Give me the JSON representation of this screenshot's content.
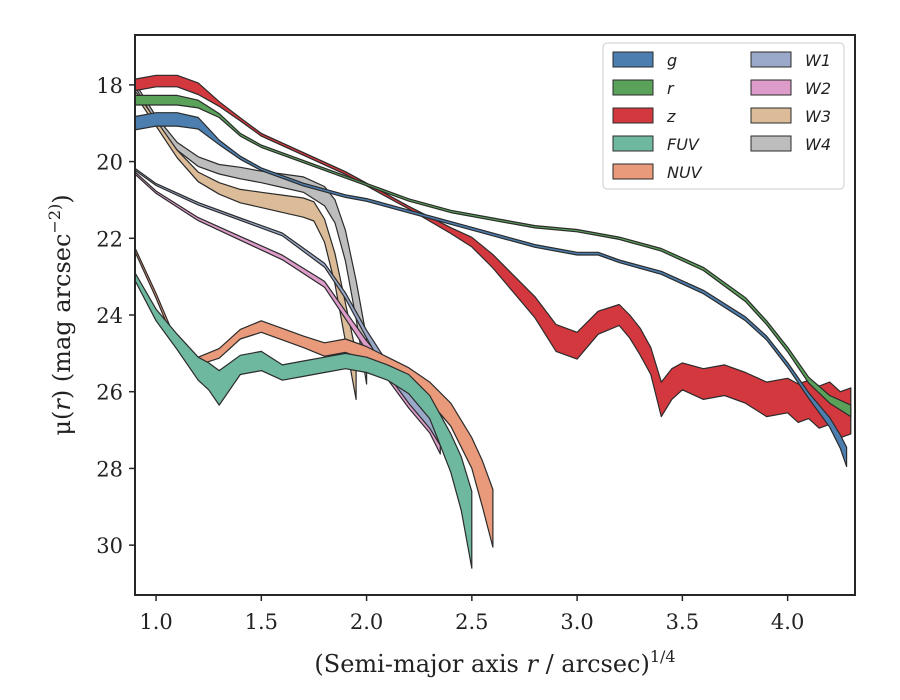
{
  "chart_data": {
    "type": "area",
    "xlabel": "(Semi-major axis r / arcsec)^1/4",
    "ylabel": "μ(r) (mag arcsec^−2)",
    "xlim": [
      0.9,
      4.32
    ],
    "ylim": [
      31.3,
      16.7
    ],
    "y_inverted": true,
    "x_ticks": [
      "1.0",
      "1.5",
      "2.0",
      "2.5",
      "3.0",
      "3.5",
      "4.0"
    ],
    "y_ticks": [
      "18",
      "20",
      "22",
      "24",
      "26",
      "28",
      "30"
    ],
    "grid": false,
    "legend_position": "top-right",
    "legend_columns": 2,
    "series": [
      {
        "name": "g",
        "color": "#4c7fb0",
        "x": [
          0.9,
          1.0,
          1.1,
          1.2,
          1.3,
          1.4,
          1.5,
          1.7,
          1.9,
          2.0,
          2.2,
          2.4,
          2.6,
          2.8,
          3.0,
          3.1,
          3.2,
          3.4,
          3.6,
          3.8,
          3.9,
          4.0,
          4.1,
          4.2,
          4.25,
          4.28
        ],
        "y": [
          19.0,
          18.9,
          18.9,
          19.0,
          19.5,
          19.9,
          20.2,
          20.6,
          20.9,
          21.0,
          21.3,
          21.6,
          21.9,
          22.2,
          22.4,
          22.4,
          22.6,
          22.9,
          23.4,
          24.1,
          24.6,
          25.3,
          26.1,
          26.8,
          27.3,
          27.7
        ],
        "width": [
          0.35,
          0.35,
          0.35,
          0.3,
          0.12,
          0.08,
          0.07,
          0.07,
          0.07,
          0.07,
          0.07,
          0.07,
          0.07,
          0.07,
          0.07,
          0.07,
          0.07,
          0.08,
          0.09,
          0.1,
          0.1,
          0.12,
          0.15,
          0.25,
          0.35,
          0.5
        ]
      },
      {
        "name": "r",
        "color": "#5aa15a",
        "x": [
          0.9,
          1.0,
          1.1,
          1.2,
          1.3,
          1.4,
          1.5,
          1.7,
          1.9,
          2.0,
          2.1,
          2.2,
          2.4,
          2.6,
          2.8,
          3.0,
          3.2,
          3.4,
          3.6,
          3.8,
          3.9,
          4.0,
          4.1,
          4.2,
          4.3
        ],
        "y": [
          18.4,
          18.4,
          18.4,
          18.5,
          18.8,
          19.3,
          19.6,
          20.0,
          20.4,
          20.6,
          20.8,
          21.0,
          21.3,
          21.5,
          21.7,
          21.8,
          22.0,
          22.3,
          22.8,
          23.6,
          24.2,
          24.9,
          25.7,
          26.2,
          26.5
        ],
        "width": [
          0.25,
          0.25,
          0.25,
          0.2,
          0.1,
          0.07,
          0.06,
          0.06,
          0.06,
          0.06,
          0.06,
          0.06,
          0.06,
          0.06,
          0.06,
          0.06,
          0.06,
          0.07,
          0.08,
          0.1,
          0.1,
          0.12,
          0.15,
          0.2,
          0.3
        ]
      },
      {
        "name": "z",
        "color": "#d3383e",
        "x": [
          0.9,
          1.0,
          1.1,
          1.2,
          1.3,
          1.4,
          1.5,
          1.7,
          1.9,
          2.0,
          2.2,
          2.4,
          2.5,
          2.6,
          2.7,
          2.8,
          2.9,
          3.0,
          3.1,
          3.2,
          3.25,
          3.3,
          3.35,
          3.4,
          3.45,
          3.5,
          3.6,
          3.7,
          3.8,
          3.9,
          4.0,
          4.05,
          4.1,
          4.15,
          4.2,
          4.25,
          4.3
        ],
        "y": [
          18.0,
          17.9,
          17.9,
          18.1,
          18.5,
          18.9,
          19.3,
          19.8,
          20.3,
          20.6,
          21.2,
          21.8,
          22.1,
          22.6,
          23.2,
          23.8,
          24.6,
          24.8,
          24.2,
          24.0,
          24.3,
          24.7,
          25.2,
          26.2,
          25.8,
          25.6,
          25.8,
          25.7,
          25.9,
          26.2,
          26.1,
          26.3,
          26.2,
          26.4,
          26.3,
          26.6,
          26.5
        ],
        "width": [
          0.3,
          0.3,
          0.3,
          0.3,
          0.12,
          0.08,
          0.07,
          0.07,
          0.07,
          0.07,
          0.07,
          0.15,
          0.25,
          0.35,
          0.45,
          0.55,
          0.7,
          0.7,
          0.6,
          0.55,
          0.6,
          0.7,
          0.7,
          0.9,
          0.8,
          0.7,
          0.8,
          0.8,
          0.8,
          0.9,
          0.9,
          1.0,
          1.0,
          1.1,
          1.1,
          1.2,
          1.2
        ]
      },
      {
        "name": "FUV",
        "color": "#6fb8a0",
        "x": [
          0.9,
          1.0,
          1.1,
          1.2,
          1.25,
          1.3,
          1.4,
          1.5,
          1.6,
          1.7,
          1.8,
          1.9,
          2.0,
          2.1,
          2.2,
          2.3,
          2.35,
          2.4,
          2.45,
          2.5
        ],
        "y": [
          23.0,
          24.0,
          24.7,
          25.4,
          25.6,
          25.9,
          25.3,
          25.2,
          25.5,
          25.4,
          25.3,
          25.2,
          25.3,
          25.5,
          25.8,
          26.4,
          27.0,
          27.6,
          28.4,
          29.6
        ],
        "width": [
          0.2,
          0.3,
          0.4,
          0.6,
          0.7,
          0.9,
          0.5,
          0.5,
          0.4,
          0.4,
          0.4,
          0.4,
          0.4,
          0.4,
          0.5,
          0.6,
          0.8,
          1.0,
          1.4,
          2.0
        ]
      },
      {
        "name": "NUV",
        "color": "#e99a7a",
        "x": [
          0.9,
          1.0,
          1.1,
          1.2,
          1.3,
          1.4,
          1.5,
          1.6,
          1.7,
          1.8,
          1.9,
          2.0,
          2.1,
          2.2,
          2.3,
          2.4,
          2.5,
          2.55,
          2.6
        ],
        "y": [
          22.3,
          23.5,
          24.8,
          25.2,
          25.0,
          24.5,
          24.3,
          24.5,
          24.7,
          24.9,
          24.8,
          25.0,
          25.3,
          25.6,
          26.0,
          26.6,
          27.6,
          28.4,
          29.3
        ],
        "width": [
          0.1,
          0.12,
          0.15,
          0.2,
          0.25,
          0.25,
          0.3,
          0.3,
          0.3,
          0.35,
          0.35,
          0.35,
          0.4,
          0.45,
          0.5,
          0.6,
          0.8,
          1.2,
          1.5
        ]
      },
      {
        "name": "W1",
        "color": "#9aa9ca",
        "x": [
          0.9,
          1.0,
          1.2,
          1.4,
          1.6,
          1.8,
          1.9,
          2.0,
          2.1,
          2.2,
          2.3,
          2.35
        ],
        "y": [
          20.2,
          20.6,
          21.1,
          21.5,
          21.9,
          22.7,
          23.5,
          24.5,
          25.4,
          26.1,
          26.7,
          27.1
        ],
        "width": [
          0.05,
          0.05,
          0.06,
          0.06,
          0.07,
          0.1,
          0.15,
          0.2,
          0.3,
          0.4,
          0.5,
          0.6
        ]
      },
      {
        "name": "W2",
        "color": "#de9ccb",
        "x": [
          0.9,
          1.0,
          1.2,
          1.4,
          1.6,
          1.8,
          1.9,
          2.0,
          2.1,
          2.2,
          2.3,
          2.35
        ],
        "y": [
          20.3,
          20.8,
          21.5,
          22.0,
          22.5,
          23.2,
          24.0,
          24.8,
          25.5,
          26.2,
          26.8,
          27.3
        ],
        "width": [
          0.06,
          0.06,
          0.08,
          0.1,
          0.12,
          0.15,
          0.2,
          0.25,
          0.35,
          0.45,
          0.55,
          0.65
        ]
      },
      {
        "name": "W3",
        "color": "#dcbc98",
        "x": [
          0.9,
          1.0,
          1.1,
          1.2,
          1.3,
          1.4,
          1.5,
          1.6,
          1.7,
          1.75,
          1.8,
          1.85,
          1.9,
          1.95
        ],
        "y": [
          18.2,
          19.0,
          19.8,
          20.4,
          20.7,
          20.9,
          21.0,
          21.1,
          21.2,
          21.3,
          21.8,
          22.8,
          24.2,
          25.6
        ],
        "width": [
          0.1,
          0.15,
          0.2,
          0.25,
          0.3,
          0.35,
          0.4,
          0.45,
          0.5,
          0.5,
          0.6,
          0.8,
          1.0,
          1.2
        ]
      },
      {
        "name": "W4",
        "color": "#bdbdbd",
        "x": [
          0.9,
          1.0,
          1.1,
          1.2,
          1.3,
          1.4,
          1.5,
          1.6,
          1.7,
          1.8,
          1.85,
          1.9,
          1.95,
          2.0
        ],
        "y": [
          18.0,
          18.9,
          19.6,
          20.0,
          20.2,
          20.3,
          20.4,
          20.5,
          20.6,
          20.9,
          21.3,
          22.2,
          23.6,
          25.2
        ],
        "width": [
          0.1,
          0.15,
          0.2,
          0.25,
          0.25,
          0.3,
          0.3,
          0.35,
          0.4,
          0.5,
          0.6,
          0.8,
          1.0,
          1.2
        ]
      }
    ]
  }
}
